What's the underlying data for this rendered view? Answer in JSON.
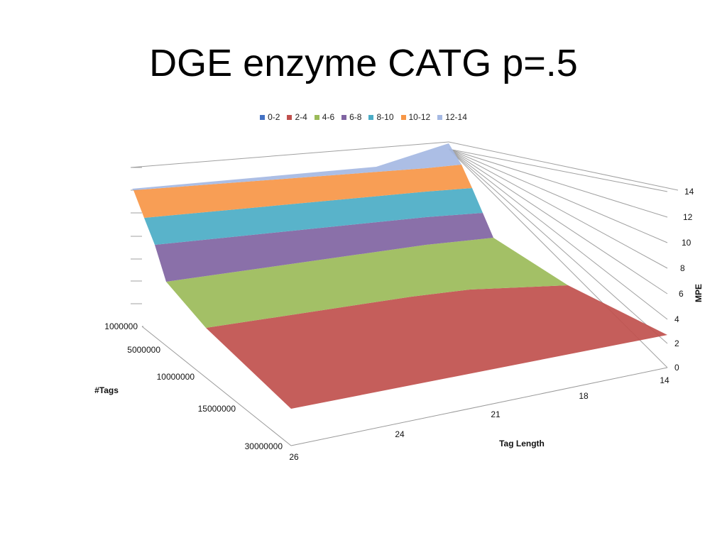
{
  "slide": {
    "title": "DGE enzyme CATG p=.5"
  },
  "chart_data": {
    "type": "surface",
    "title": "DGE enzyme CATG p=.5",
    "legend_position": "top",
    "legend": [
      {
        "name": "0-2",
        "color": "#4472c4"
      },
      {
        "name": "2-4",
        "color": "#c0504d"
      },
      {
        "name": "4-6",
        "color": "#9bbb59"
      },
      {
        "name": "6-8",
        "color": "#8064a2"
      },
      {
        "name": "8-10",
        "color": "#4bacc6"
      },
      {
        "name": "10-12",
        "color": "#f79646"
      },
      {
        "name": "12-14",
        "color": "#a5b9e3"
      }
    ],
    "x_axis": {
      "label": "Tag Length",
      "categories": [
        "14",
        "18",
        "21",
        "24",
        "26"
      ]
    },
    "y_axis": {
      "label": "#Tags",
      "categories": [
        "1000000",
        "5000000",
        "10000000",
        "15000000",
        "30000000"
      ]
    },
    "z_axis": {
      "label": "MPE",
      "ticks": [
        "0",
        "2",
        "4",
        "6",
        "8",
        "10",
        "12",
        "14"
      ],
      "range": [
        0,
        14
      ]
    },
    "grid": true
  }
}
